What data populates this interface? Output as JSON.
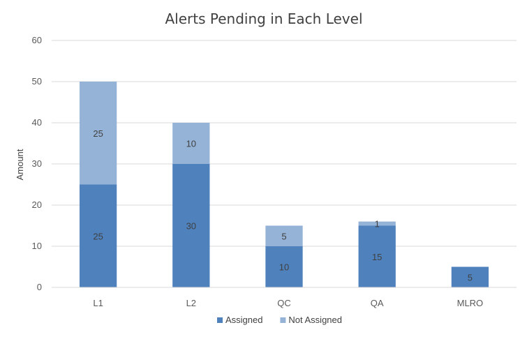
{
  "chart_data": {
    "type": "bar",
    "stacked": true,
    "title": "Alerts Pending in Each Level",
    "xlabel": "",
    "ylabel": "Amount",
    "categories": [
      "L1",
      "L2",
      "QC",
      "QA",
      "MLRO"
    ],
    "series": [
      {
        "name": "Assigned",
        "values": [
          25,
          30,
          10,
          15,
          5
        ],
        "color": "#4f81bd"
      },
      {
        "name": "Not Assigned",
        "values": [
          25,
          10,
          5,
          1,
          0
        ],
        "color": "#95b3d7"
      }
    ],
    "ylim": [
      0,
      60
    ],
    "yticks": [
      0,
      10,
      20,
      30,
      40,
      50,
      60
    ],
    "grid": true,
    "legend_position": "bottom"
  }
}
